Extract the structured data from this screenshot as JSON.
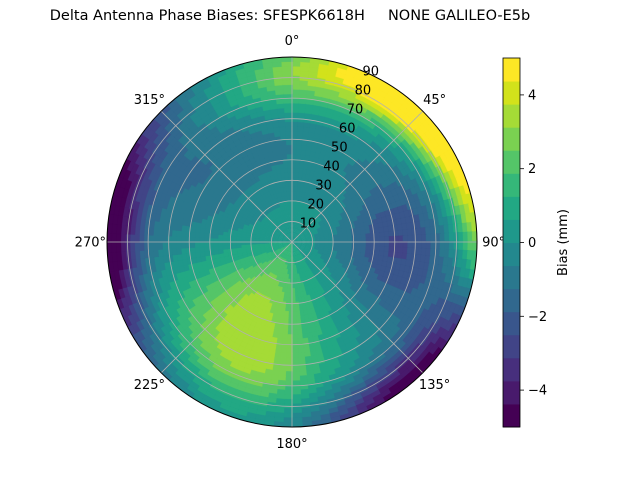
{
  "chart_data": {
    "type": "heatmap",
    "projection": "polar",
    "title": "Delta Antenna Phase Biases: SFESPK6618H     NONE GALILEO-E5b",
    "theta_direction": "clockwise",
    "theta_zero_location": "top",
    "theta_tick_labels": [
      "0°",
      "45°",
      "90°",
      "135°",
      "180°",
      "225°",
      "270°",
      "315°"
    ],
    "r_ticks": [
      10,
      20,
      30,
      40,
      50,
      60,
      70,
      80,
      90
    ],
    "r_tick_labels": [
      "10",
      "20",
      "30",
      "40",
      "50",
      "60",
      "70",
      "80",
      "90"
    ],
    "rlim": [
      0,
      90
    ],
    "grid": true,
    "colormap": "viridis",
    "colorbar": {
      "label": "Bias (mm)",
      "range": [
        -5,
        5
      ],
      "ticks": [
        -4,
        -2,
        0,
        2,
        4
      ],
      "tick_labels": [
        "−4",
        "−2",
        "0",
        "2",
        "4"
      ],
      "levels": [
        -5,
        -4.5,
        -4,
        -3.5,
        -3,
        -2.5,
        -2,
        -1.5,
        -1,
        -0.5,
        0,
        0.5,
        1,
        1.5,
        2,
        2.5,
        3,
        3.5,
        4,
        4.5,
        5
      ],
      "colors": [
        "#440154",
        "#481a6c",
        "#472f7d",
        "#414487",
        "#39568c",
        "#31688e",
        "#2a788e",
        "#23888e",
        "#1f988b",
        "#22a884",
        "#35b779",
        "#54c568",
        "#7ad151",
        "#a5db36",
        "#d2e21b",
        "#fde725"
      ]
    },
    "field_description_points": [
      {
        "azimuth": 0,
        "r": 80,
        "value": 2.2
      },
      {
        "azimuth": 20,
        "r": 78,
        "value": 2.0
      },
      {
        "azimuth": 45,
        "r": 88,
        "value": 4.5
      },
      {
        "azimuth": 60,
        "r": 86,
        "value": 3.5
      },
      {
        "azimuth": 90,
        "r": 50,
        "value": -1.2
      },
      {
        "azimuth": 90,
        "r": 88,
        "value": 0.2
      },
      {
        "azimuth": 135,
        "r": 88,
        "value": -3.5
      },
      {
        "azimuth": 200,
        "r": 55,
        "value": 2.3
      },
      {
        "azimuth": 210,
        "r": 35,
        "value": 1.8
      },
      {
        "azimuth": 270,
        "r": 85,
        "value": -4.2
      },
      {
        "azimuth": 300,
        "r": 60,
        "value": -1.5
      },
      {
        "azimuth": 320,
        "r": 40,
        "value": -1.0
      }
    ]
  }
}
